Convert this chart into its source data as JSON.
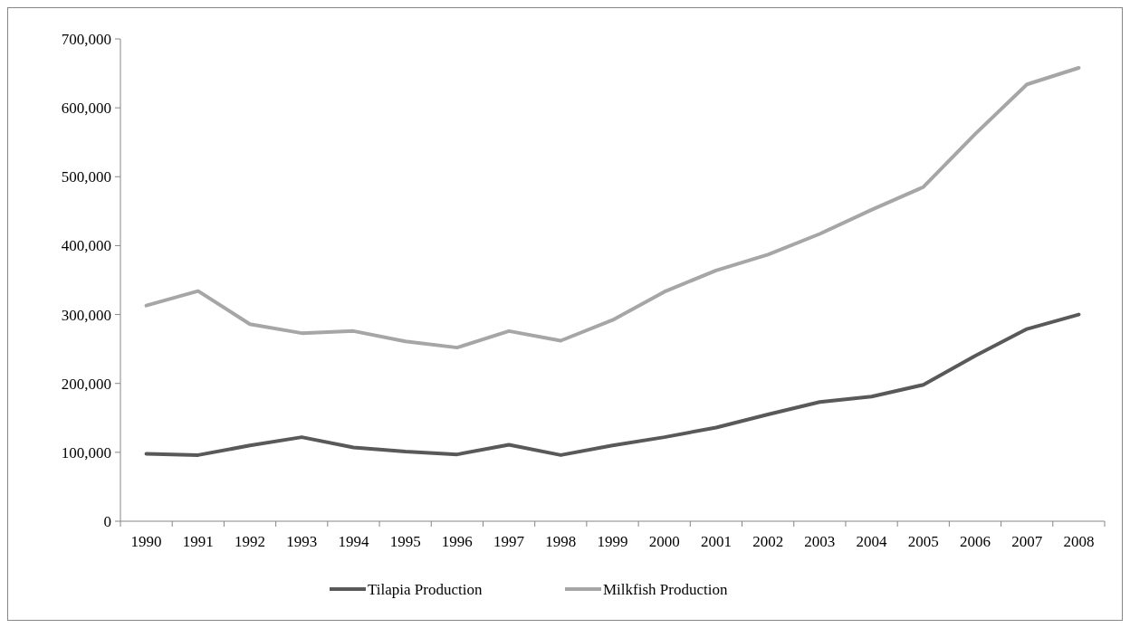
{
  "chart_data": {
    "type": "line",
    "categories": [
      "1990",
      "1991",
      "1992",
      "1993",
      "1994",
      "1995",
      "1996",
      "1997",
      "1998",
      "1999",
      "2000",
      "2001",
      "2002",
      "2003",
      "2004",
      "2005",
      "2006",
      "2007",
      "2008"
    ],
    "series": [
      {
        "name": "Tilapia Production",
        "color": "#595959",
        "values": [
          98000,
          96000,
          110000,
          122000,
          107000,
          101000,
          97000,
          111000,
          96000,
          110000,
          122000,
          136000,
          155000,
          173000,
          181000,
          198000,
          240000,
          279000,
          300000
        ]
      },
      {
        "name": "Milkfish Production",
        "color": "#a6a6a6",
        "values": [
          313000,
          334000,
          286000,
          273000,
          276000,
          261000,
          252000,
          276000,
          262000,
          292000,
          333000,
          364000,
          387000,
          417000,
          452000,
          485000,
          562000,
          634000,
          658000
        ]
      }
    ],
    "ylim": [
      0,
      700000
    ],
    "yticks": [
      {
        "value": 0,
        "label": "0"
      },
      {
        "value": 100000,
        "label": "100,000"
      },
      {
        "value": 200000,
        "label": "200,000"
      },
      {
        "value": 300000,
        "label": "300,000"
      },
      {
        "value": 400000,
        "label": "400,000"
      },
      {
        "value": 500000,
        "label": "500,000"
      },
      {
        "value": 600000,
        "label": "600,000"
      },
      {
        "value": 700000,
        "label": "700,000"
      }
    ],
    "grid": false,
    "legend": "bottom",
    "marker": "none",
    "line_style": "solid"
  }
}
